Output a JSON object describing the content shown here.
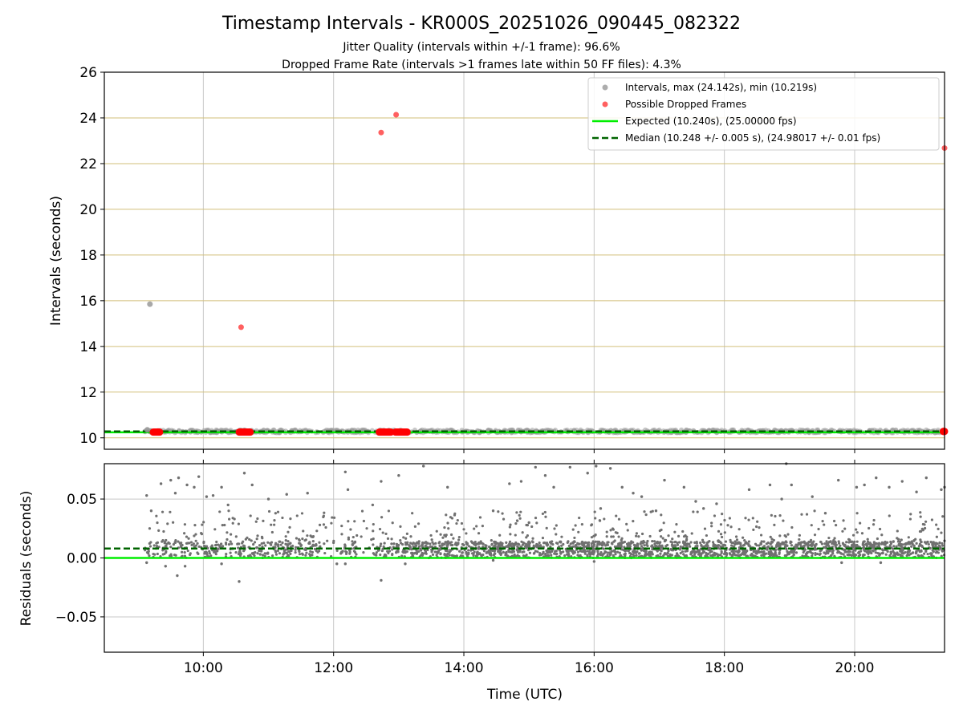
{
  "figure": {
    "title": "Timestamp Intervals - KR000S_20251026_090445_082322",
    "subtitle_1": "Jitter Quality (intervals within +/-1 frame): 96.6%",
    "subtitle_2": "Dropped Frame Rate (intervals >1 frames late within 50 FF files): 4.3%",
    "xlabel": "Time (UTC)"
  },
  "legend": {
    "intervals": "Intervals, max (24.142s), min (10.219s)",
    "dropped": "Possible Dropped Frames",
    "expected": "Expected (10.240s), (25.00000 fps)",
    "median": "Median (10.248 +/- 0.005 s), (24.98017 +/- 0.01 fps)"
  },
  "colors": {
    "intervals": "#999999",
    "dropped": "#ff4444",
    "dropped_cluster": "#ff0000",
    "expected": "#00ee00",
    "median": "#006400",
    "residual_points": "#707070",
    "gold_grid": "#d2bf7a",
    "grey_grid": "#c8c8c8"
  },
  "chart_data": [
    {
      "type": "scatter",
      "panel": "top",
      "ylabel": "Intervals (seconds)",
      "x_unit": "hours UTC",
      "xlim": [
        8.48,
        21.38
      ],
      "ylim": [
        9.5,
        26
      ],
      "yticks": [
        10,
        12,
        14,
        16,
        18,
        20,
        22,
        24,
        26
      ],
      "xticks": [
        10,
        12,
        14,
        16,
        18,
        20
      ],
      "xtick_labels": [
        "10:00",
        "12:00",
        "14:00",
        "16:00",
        "18:00",
        "20:00"
      ],
      "horizontal_gridlines": "gold",
      "vertical_gridlines": "grey",
      "legend_position": "upper right",
      "series": [
        {
          "name": "Intervals, max (24.142s), min (10.219s)",
          "points": [
            [
              9.18,
              15.85
            ],
            [
              9.14,
              10.35
            ]
          ],
          "band": {
            "x_start": 9.1,
            "x_end": 21.38,
            "y_low": 10.22,
            "y_high": 10.35
          }
        },
        {
          "name": "Possible Dropped Frames",
          "points": [
            [
              10.58,
              14.84
            ],
            [
              12.73,
              23.36
            ],
            [
              12.96,
              24.14
            ],
            [
              21.38,
              22.68
            ]
          ],
          "clusters": [
            {
              "x_start": 9.23,
              "x_end": 9.33,
              "y": 10.25
            },
            {
              "x_start": 10.55,
              "x_end": 10.72,
              "y": 10.25
            },
            {
              "x_start": 12.7,
              "x_end": 12.88,
              "y": 10.25
            },
            {
              "x_start": 12.95,
              "x_end": 13.13,
              "y": 10.25
            },
            {
              "x_start": 21.36,
              "x_end": 21.38,
              "y": 10.28
            }
          ]
        },
        {
          "name": "Expected (10.240s), (25.00000 fps)",
          "y": 10.24
        },
        {
          "name": "Median (10.248 +/- 0.005 s), (24.98017 +/- 0.01 fps)",
          "y": 10.248
        }
      ]
    },
    {
      "type": "scatter",
      "panel": "bottom",
      "ylabel": "Residuals (seconds)",
      "xlabel": "Time (UTC)",
      "xlim": [
        8.48,
        21.38
      ],
      "ylim": [
        -0.08,
        0.08
      ],
      "yticks": [
        -0.05,
        0.0,
        0.05
      ],
      "ytick_labels": [
        "−0.05",
        "0.00",
        "0.05"
      ],
      "xticks": [
        10,
        12,
        14,
        16,
        18,
        20
      ],
      "xtick_labels": [
        "10:00",
        "12:00",
        "14:00",
        "16:00",
        "18:00",
        "20:00"
      ],
      "grid": true,
      "series": [
        {
          "name": "Expected",
          "y": 0.0
        },
        {
          "name": "Median",
          "y": 0.008
        },
        {
          "name": "Residuals",
          "points": [
            [
              9.13,
              0.053
            ],
            [
              9.2,
              0.04
            ],
            [
              9.35,
              0.063
            ],
            [
              9.5,
              0.066
            ],
            [
              9.57,
              0.055
            ],
            [
              9.62,
              0.068
            ],
            [
              9.75,
              0.062
            ],
            [
              9.86,
              0.06
            ],
            [
              9.93,
              0.069
            ],
            [
              10.05,
              0.052
            ],
            [
              10.15,
              0.053
            ],
            [
              10.28,
              0.06
            ],
            [
              10.38,
              0.045
            ],
            [
              10.63,
              0.072
            ],
            [
              10.75,
              0.062
            ],
            [
              11.0,
              0.05
            ],
            [
              11.28,
              0.054
            ],
            [
              11.6,
              0.055
            ],
            [
              12.18,
              0.073
            ],
            [
              12.22,
              0.058
            ],
            [
              12.6,
              0.045
            ],
            [
              12.73,
              0.065
            ],
            [
              13.0,
              0.07
            ],
            [
              13.38,
              0.078
            ],
            [
              13.75,
              0.06
            ],
            [
              14.45,
              0.04
            ],
            [
              14.7,
              0.063
            ],
            [
              14.88,
              0.065
            ],
            [
              15.0,
              0.03
            ],
            [
              15.1,
              0.077
            ],
            [
              15.25,
              0.07
            ],
            [
              15.38,
              0.06
            ],
            [
              15.63,
              0.077
            ],
            [
              15.9,
              0.072
            ],
            [
              16.03,
              0.078
            ],
            [
              16.1,
              0.042
            ],
            [
              16.25,
              0.076
            ],
            [
              16.43,
              0.06
            ],
            [
              16.6,
              0.055
            ],
            [
              16.73,
              0.052
            ],
            [
              16.95,
              0.04
            ],
            [
              17.08,
              0.066
            ],
            [
              17.38,
              0.06
            ],
            [
              17.56,
              0.048
            ],
            [
              17.68,
              0.042
            ],
            [
              17.88,
              0.046
            ],
            [
              18.38,
              0.058
            ],
            [
              18.7,
              0.062
            ],
            [
              18.88,
              0.05
            ],
            [
              18.95,
              0.08
            ],
            [
              19.03,
              0.062
            ],
            [
              19.35,
              0.052
            ],
            [
              19.55,
              0.038
            ],
            [
              19.75,
              0.066
            ],
            [
              20.03,
              0.06
            ],
            [
              20.15,
              0.062
            ],
            [
              20.33,
              0.068
            ],
            [
              20.53,
              0.06
            ],
            [
              20.73,
              0.065
            ],
            [
              20.95,
              0.056
            ],
            [
              21.1,
              0.068
            ],
            [
              21.33,
              0.058
            ],
            [
              21.38,
              0.06
            ],
            [
              9.13,
              -0.004
            ],
            [
              9.42,
              -0.007
            ],
            [
              9.6,
              -0.015
            ],
            [
              9.72,
              -0.007
            ],
            [
              10.28,
              -0.005
            ],
            [
              10.55,
              -0.02
            ],
            [
              12.05,
              -0.005
            ],
            [
              12.18,
              -0.005
            ],
            [
              12.73,
              -0.019
            ],
            [
              13.1,
              -0.005
            ],
            [
              14.45,
              -0.002
            ],
            [
              16.0,
              -0.003
            ],
            [
              19.8,
              -0.004
            ],
            [
              20.4,
              -0.004
            ]
          ],
          "band": {
            "x_start": 9.1,
            "x_end": 21.38,
            "y_low": 0.0,
            "y_high": 0.014
          }
        }
      ]
    }
  ]
}
